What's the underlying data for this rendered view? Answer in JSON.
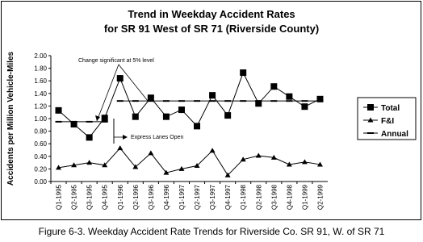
{
  "chart_data": {
    "type": "line",
    "title": "Trend in Weekday Accident Rates",
    "subtitle": "for SR 91 West of SR 71 (Riverside County)",
    "y_label": "Accidents per Million Vehicle-Miles",
    "caption": "Figure 6-3. Weekday Accident Rate Trends for Riverside Co. SR 91, W. of SR 71",
    "annotations": [
      "Change significant at 5% level",
      "Express Lanes Open"
    ],
    "categories": [
      "Q1-1995",
      "Q2-1995",
      "Q3-1995",
      "Q4-1995",
      "Q1-1996",
      "Q2-1996",
      "Q3-1996",
      "Q4-1996",
      "Q1-1997",
      "Q2-1997",
      "Q3-1997",
      "Q4-1997",
      "Q1-1998",
      "Q2-1998",
      "Q3-1998",
      "Q4-1998",
      "Q1-1999",
      "Q2-1999"
    ],
    "series": [
      {
        "name": "Total",
        "color": "#000000",
        "marker": "square",
        "values": [
          1.13,
          0.91,
          0.7,
          1.01,
          1.64,
          1.03,
          1.33,
          1.03,
          1.14,
          0.88,
          1.37,
          1.05,
          1.73,
          1.24,
          1.51,
          1.35,
          1.19,
          1.31
        ]
      },
      {
        "name": "F&I",
        "color": "#000000",
        "marker": "triangle",
        "values": [
          0.22,
          0.26,
          0.3,
          0.26,
          0.53,
          0.23,
          0.45,
          0.14,
          0.2,
          0.25,
          0.49,
          0.1,
          0.35,
          0.41,
          0.38,
          0.27,
          0.31,
          0.27
        ]
      },
      {
        "name": "Annual",
        "color": "#000000",
        "marker": "dash",
        "values": [
          0.95,
          0.95,
          0.95,
          0.95,
          1.28,
          1.28,
          1.28,
          1.28,
          1.28,
          1.28,
          1.28,
          1.28,
          1.28,
          1.28,
          1.28,
          1.28,
          1.28,
          1.28
        ]
      }
    ],
    "ylim": [
      0,
      2
    ],
    "yticks": [
      {
        "value": 0,
        "label": "0.00"
      },
      {
        "value": 0.2,
        "label": "0.20"
      },
      {
        "value": 0.4,
        "label": "0.40"
      },
      {
        "value": 0.6,
        "label": "0.60"
      },
      {
        "value": 0.8,
        "label": "0.80"
      },
      {
        "value": 1,
        "label": "1.00"
      },
      {
        "value": 1.2,
        "label": "1.20"
      },
      {
        "value": 1.4,
        "label": "1.40"
      },
      {
        "value": 1.6,
        "label": "1.60"
      },
      {
        "value": 1.8,
        "label": "1.80"
      },
      {
        "value": 2,
        "label": "2.00"
      }
    ],
    "grid": false,
    "legend": "right"
  }
}
